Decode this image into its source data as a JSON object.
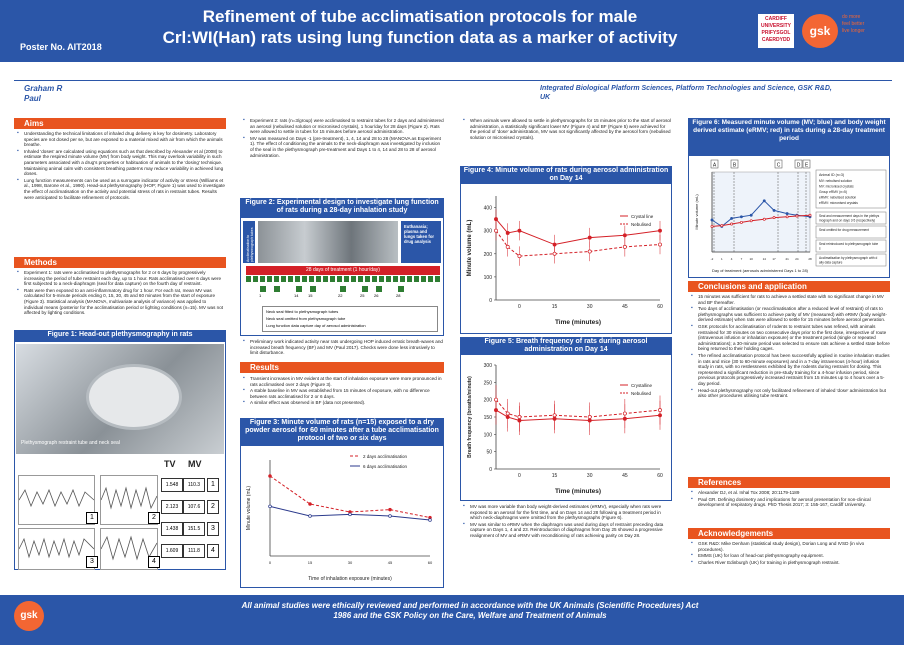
{
  "header": {
    "title_line1": "Refinement of tube acclimatisation protocols for male",
    "title_line2": "Crl:WI(Han) rats using lung function data as a marker of activity",
    "poster_no": "Poster No. AIT2018",
    "logo_cardiff": [
      "CARDIFF",
      "UNIVERSITY",
      "PRIFYSGOL",
      "CAERDYDD"
    ],
    "logo_gsk": "gsk",
    "tagline": [
      "do more",
      "feel better",
      "live longer"
    ],
    "brand_color": "#2b56a8",
    "accent_color": "#e8541f"
  },
  "authors": {
    "line1": "Graham R",
    "line2": "Paul",
    "affiliation_line1": "Integrated Biological Platform Sciences, Platform Technologies and Science, GSK R&D,",
    "affiliation_line2": "UK"
  },
  "aims": {
    "title": "Aims",
    "items": [
      "Understanding the technical limitations of inhaled drug delivery is key for dosimetry. Laboratory species are not dosed per se, but are exposed to a material mixed with air from which the animals breathe.",
      "Inhaled 'doses' are calculated using equations such as that described by Alexander et al (2008) to estimate the respired minute volume (MV) from body weight. This may overlook variability in such parameters associated with a drug's properties or habituation of animals to the 'dosing' technique. Maintaining animal calm with consistent breathing patterns may reduce variability in achieved lung doses.",
      "Lung function measurements can be used as a surrogate indicator of activity or stress (Williams et al., 1998, Barone et al., 1990). Head-out plethysmography (HOP; Figure 1) was used to investigate the effect of acclimatisation on the activity and potential stress of rats in restraint tubes. Results were anticipated to facilitate refinement of protocols."
    ]
  },
  "methods": {
    "title": "Methods",
    "items": [
      "Experiment 1: rats were acclimatised to plethysmographs for 2 or 6 days by progressively increasing the period of tube restraint each day, up to 1 hour. Rats acclimatised over 6 days were first subjected to a neck-diaphragm (seal for data capture) on the fourth day of restraint.",
      "Rats were then exposed to an anti-inflammatory drug for 1 hour. For each rat, mean MV was calculated for 5-minute periods ending 0, 15, 30, 45 and 60 minutes from the start of exposure (Figure 3). Statistical analysis (MANOVA, multivariate analysis of variance) was applied to individual means (posterior for the acclimatisation period or lighting conditions (n=15). MV was not affected by lighting conditions."
    ]
  },
  "fig1": {
    "title": "Figure 1: Head-out plethysmography in rats",
    "caption": "Plethysmograph restraint tube and neck seal",
    "col_tv": "TV",
    "col_mv": "MV",
    "rows": [
      {
        "n": "1",
        "tv": "1.548",
        "mv": "110.3"
      },
      {
        "n": "2",
        "tv": "2.123",
        "mv": "107.6"
      },
      {
        "n": "3",
        "tv": "1.438",
        "mv": "151.5"
      },
      {
        "n": "4",
        "tv": "1.609",
        "mv": "111.8"
      }
    ],
    "panel_labels": [
      "1",
      "2",
      "3",
      "4"
    ]
  },
  "col2_top": {
    "items": [
      "Experiment 2: rats (n=3/group) were acclimatised to restraint tubes for 2 days and administered an aerosol (nebulised solution or micronised crystals), 1 hour/day for 28 days (Figure 2). Rats were allowed to settle in tubes for 15 minutes before aerosol administration.",
      "MV was measured on Days -1 (pre-treatment), 1, 4, 14 and 28 to 28 (MANOVA as Experiment 1). The effect of conditioning the animals to the neck-diaphragm was investigated by inclusion of the seal in the plethysmograph pre-treatment and Days 1 to 4, 14 and 28 to 28 of aerosol administration."
    ]
  },
  "fig2": {
    "title": "Figure 2: Experimental design to investigate lung function of rats during a 28-day inhalation study",
    "side_left": "Acclimatisation to plethysmograph tubes",
    "side_right": "Euthanasia; plasma and lungs taken for drug analysis",
    "bar_label": "28 days of treatment (1 hour/day)",
    "markers": [
      "1",
      "14",
      "15",
      "22",
      "25",
      "26",
      "28"
    ],
    "legend": [
      "Neck seal fitted to plethysmograph tubes",
      "Neck seal omitted from plethysmograph tube",
      "Lung function data capture day of aerosol administration"
    ]
  },
  "col2_mid": {
    "items": [
      "Preliminary work indicated activity near rats undergoing HOP induced erratic breath-waves and increased breath frequency (BF) and MV (Paul 2017). Checks were done less intrusively to limit disturbance."
    ]
  },
  "results": {
    "title": "Results",
    "items": [
      "Transient increases in MV evident at the start of inhalation exposure were more pronounced in rats acclimatised over 2 days (Figure 3).",
      "A stable baseline in MV was established from 15 minutes of exposure, with no difference between rats acclimatised for 2 or 6 days.",
      "A similar effect was observed in BF (data not presented)."
    ]
  },
  "fig3": {
    "title": "Figure 3: Minute volume of rats (n=15) exposed to a dry powder aerosol for 60 minutes after a tube acclimatisation protocol of two or six days",
    "ylabel": "Minute volume (mL)",
    "xlabel": "Time of inhalation exposure (minutes)",
    "legend": [
      "2 days acclimatisation",
      "6 days acclimatisation"
    ]
  },
  "col3_top": {
    "items": [
      "When animals were allowed to settle in plethysmographs for 15 minutes prior to the start of aerosol administration, a statistically significant lower MV (Figure 4) and BF (Figure 5) were achieved for the period of 'dose' administration, MV was not significantly affected by the aerosol form (nebulised solution or micronised crystals)."
    ]
  },
  "fig4": {
    "title": "Figure 4: Minute volume of rats during aerosol administration on Day 14",
    "ylabel": "Minute volume (mL)",
    "xlabel": "Time (minutes)",
    "legend": [
      "Crystal line",
      "Nebulised"
    ]
  },
  "fig5": {
    "title": "Figure 5: Breath frequency of rats during aerosol administration on Day 14",
    "ylabel": "Breath frequency (breaths/minute)",
    "xlabel": "Time (minutes)",
    "legend": [
      "Crystalline",
      "Nebulised"
    ]
  },
  "col3_bottom": {
    "items": [
      "MV was more variable than body weight-derived estimates (eRMV), especially when rats were exposed to an aerosol for the first time, and on Days 14 and 28 following a treatment period in which neck-diaphragms were omitted from the plethysmographs (Figure 6).",
      "MV was similar to eRMV when the diaphragm was used during days of restraint preceding data capture on Days 1, 4 and 23. Reintroduction of diaphragms from Day 25 showed a progressive realignment of MV and eRMV with reconditioning of rats achieving parity on Day 28."
    ]
  },
  "fig6": {
    "title": "Figure 6: Measured minute volume (MV; blue) and body weight derived estimate (eRMV; red) in rats during a 28-day treatment period",
    "ylabel": "Minute volume (mL)",
    "xlabel": "Day of treatment (aerosols administered Days 1 to 28)",
    "markers": [
      "A",
      "B",
      "C",
      "D",
      "E"
    ],
    "key_title": "Animal ID (n=3)",
    "key_items": [
      "MV: nebulised solution",
      "MV: micronised crystals",
      "Group eRMV (n=5)",
      "eRMV: nebulised solution",
      "eRMV: micronised crystals"
    ],
    "notes": [
      "Seal and measurement days in the plethysmograph and on days 3-5 (respectively)",
      "Seal omitted for drug measurement",
      "Seal reintroduced to plethysmograph tubes",
      "Acclimatisation by plethysmograph with daily data capture"
    ]
  },
  "conclusions": {
    "title": "Conclusions and application",
    "items": [
      "15 minutes was sufficient for rats to achieve a settled state with no significant change in MV and BF thereafter.",
      "Two days of acclimatisation (or reacclimatisation after a reduced level of restraint) of rats to plethysmographs was sufficient to achieve parity of MV (measured) with eRMV (body weight-derived estimate) when rats were allowed to settle for 15 minutes before aerosol generation.",
      "GSK protocols for acclimatisation of rodents to restraint tubes was refined, with animals restrained for 30 minutes on two consecutive days prior to the first dose, irrespective of route (intravenous infusion or inhalation exposure) or the treatment period (single or repeated administrations); a 30-minute period was selected to ensure rats achieve a settled state before being returned to their holding cages.",
      "The refined acclimatisation protocol has been successfully applied in routine inhalation studies in rats and mice (30 to 60-minute exposures) and in a 7-day intravenous (4-hour) infusion study in rats, with no restlessness exhibited by the rodents during restraint for dosing. This represented a significant reduction in pre-study training for a 4-hour infusion period, since previous protocols progressively increased restraint from 15 minutes up to 4 hours over a 5-day period.",
      "Head-out plethysmography not only facilitated refinement of inhaled 'dose' administration but also other procedures utilising tube restraint."
    ]
  },
  "references": {
    "title": "References",
    "items": [
      "Alexander DJ, et al. Inhal Tox 2008; 20:1179-1189",
      "Paul GR. Defining dosimetry and implications for aerosol presentation for non-clinical development of respiratory drugs. PhD Thesis 2017; 3: 155-167, Cardiff University."
    ]
  },
  "acknowledgements": {
    "title": "Acknowledgements",
    "items": [
      "GSK R&D: Mike Denham (statistical study design), Dorian Long and IVSD (in vivo procedures).",
      "EMMS (UK) for loan of head-out plethysmography equipment.",
      "Charles River Edinburgh (UK) for training in plethysmograph restraint."
    ]
  },
  "footer": {
    "logo": "gsk",
    "text": "All animal studies were ethically reviewed and performed in accordance with the UK Animals (Scientific Procedures) Act 1986 and the GSK Policy on the Care, Welfare and Treatment of Animals"
  },
  "chart_data": [
    {
      "type": "line",
      "title": "Figure 3",
      "x": [
        0,
        15,
        30,
        45,
        60
      ],
      "ylim": [
        200,
        320
      ],
      "xlabel": "Time of inhalation exposure (minutes)",
      "ylabel": "Minute volume (mL)",
      "series": [
        {
          "name": "2 days acclimatisation",
          "values": [
            300,
            265,
            255,
            258,
            248
          ],
          "color": "#d42027"
        },
        {
          "name": "6 days acclimatisation",
          "values": [
            262,
            250,
            252,
            250,
            245
          ],
          "color": "#2b3a8c"
        }
      ]
    },
    {
      "type": "line",
      "title": "Figure 4",
      "x": [
        -10,
        -5,
        0,
        15,
        30,
        45,
        60
      ],
      "ylim": [
        0,
        450
      ],
      "yticks": [
        0,
        100,
        200,
        300,
        400
      ],
      "xlabel": "Time (minutes)",
      "ylabel": "Minute volume (mL)",
      "series": [
        {
          "name": "Crystal line",
          "values": [
            350,
            290,
            300,
            240,
            270,
            280,
            300
          ],
          "color": "#d42027"
        },
        {
          "name": "Nebulised",
          "values": [
            300,
            230,
            190,
            200,
            210,
            230,
            240
          ],
          "color": "#d42027"
        }
      ]
    },
    {
      "type": "line",
      "title": "Figure 5",
      "x": [
        -10,
        -5,
        0,
        15,
        30,
        45,
        60
      ],
      "ylim": [
        0,
        300
      ],
      "yticks": [
        0,
        50,
        100,
        150,
        200,
        250,
        300
      ],
      "xlabel": "Time (minutes)",
      "ylabel": "Breath frequency (breaths/minute)",
      "series": [
        {
          "name": "Crystalline",
          "values": [
            170,
            150,
            140,
            145,
            140,
            145,
            155
          ],
          "color": "#d42027"
        },
        {
          "name": "Nebulised",
          "values": [
            200,
            160,
            150,
            155,
            150,
            160,
            170
          ],
          "color": "#d42027"
        }
      ]
    },
    {
      "type": "line",
      "title": "Figure 6",
      "x": [
        -2,
        1,
        4,
        7,
        10,
        14,
        17,
        21,
        24,
        28
      ],
      "ylim": [
        100,
        600
      ],
      "xlabel": "Day of treatment (aerosols administered Days 1 to 28)",
      "ylabel": "Minute volume (mL)",
      "series": [
        {
          "name": "MV",
          "values": [
            300,
            260,
            310,
            320,
            330,
            420,
            360,
            340,
            330,
            320
          ],
          "color": "#2b56a8"
        },
        {
          "name": "eRMV",
          "values": [
            260,
            265,
            275,
            285,
            295,
            305,
            315,
            320,
            325,
            330
          ],
          "color": "#d42027"
        }
      ]
    }
  ]
}
